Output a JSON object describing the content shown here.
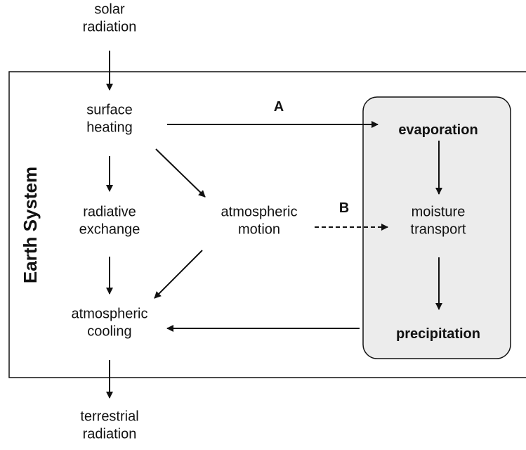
{
  "system_label": "Earth System",
  "nodes": [
    {
      "label": [
        "solar",
        "radiation"
      ]
    },
    {
      "label": [
        "surface",
        "heating"
      ]
    },
    {
      "label": [
        "radiative",
        "exchange"
      ]
    },
    {
      "label": [
        "atmospheric",
        "motion"
      ]
    },
    {
      "label": [
        "atmospheric",
        "cooling"
      ]
    },
    {
      "label": [
        "terrestrial",
        "radiation"
      ]
    },
    {
      "label": [
        "evaporation"
      ]
    },
    {
      "label": [
        "moisture",
        "transport"
      ]
    },
    {
      "label": [
        "precipitation"
      ]
    }
  ],
  "edge_labels": [
    "A",
    "B"
  ]
}
